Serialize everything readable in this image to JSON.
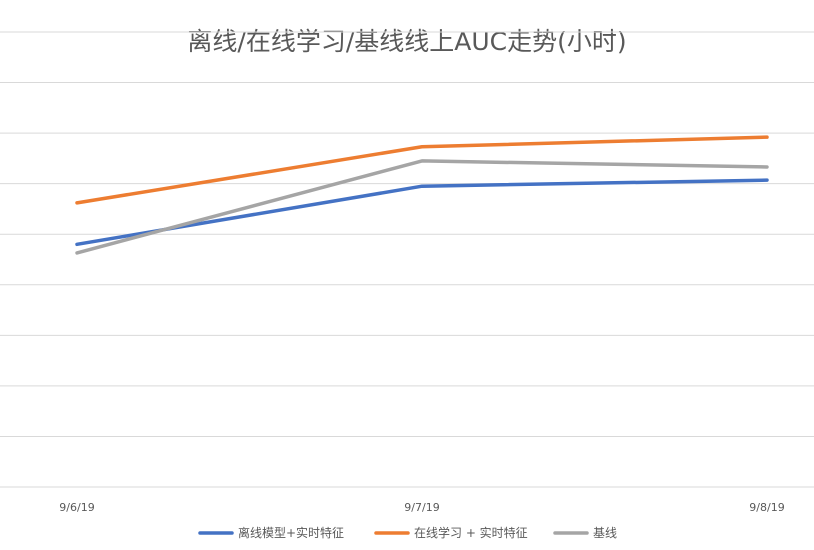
{
  "chart_data": {
    "type": "line",
    "title": "离线/在线学习/基线线上AUC走势(小时)",
    "xlabel": "",
    "ylabel": "",
    "categories": [
      "9/6/19",
      "9/7/19",
      "9/8/19"
    ],
    "ylim": [
      0,
      9
    ],
    "grid": true,
    "legend_position": "bottom",
    "series": [
      {
        "name": "离线模型+实时特征",
        "color": "#4472C4",
        "values": [
          4.8,
          5.95,
          6.07
        ]
      },
      {
        "name": "在线学习 + 实时特征",
        "color": "#ED7D31",
        "values": [
          5.62,
          6.73,
          6.92
        ]
      },
      {
        "name": "基线",
        "color": "#A5A5A5",
        "values": [
          4.63,
          6.45,
          6.33
        ]
      }
    ],
    "colors": {
      "gridline": "#d9d9d9",
      "axis_text": "#595959"
    }
  }
}
